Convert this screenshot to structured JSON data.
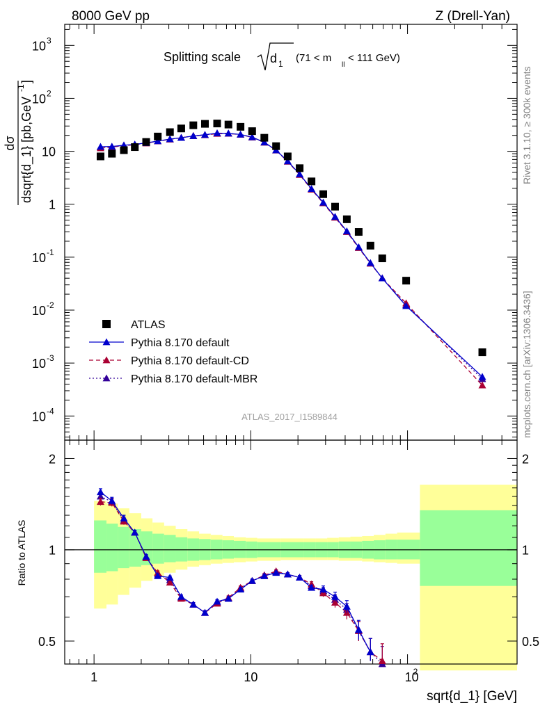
{
  "header": {
    "left": "8000 GeV pp",
    "right": "Z (Drell-Yan)"
  },
  "side_labels": {
    "rivet": "Rivet 3.1.10, ≥ 300k events",
    "mcplots": "mcplots.cern.ch [arXiv:1306.3436]"
  },
  "analysis_id": "ATLAS_2017_I1589844",
  "colors": {
    "atlas": "#000000",
    "default": "#0000cc",
    "cd": "#aa0033",
    "mbr": "#330099",
    "band_inner": "#99ff99",
    "band_outer": "#ffff99"
  },
  "chart_data": [
    {
      "type": "scatter",
      "title": "Splitting scale √d₁ (71 < m_ll < 111 GeV)",
      "title_parts": {
        "prefix": "Splitting scale",
        "symbol": "d",
        "sub": "1",
        "suffix": "(71 < m",
        "suffix_sub": "ll",
        "suffix_end": " < 111 GeV)"
      },
      "ylabel": "dσ / dsqrt{d_1} [pb,GeV⁻¹]",
      "ylabel_parts": {
        "num": "dσ",
        "den": "dsqrt{d_1} [pb,GeV",
        "den_sup": "-1",
        "den_end": "]"
      },
      "xscale": "log",
      "yscale": "log",
      "xlim": [
        0.65,
        500
      ],
      "ylim": [
        3.5e-05,
        2500
      ],
      "yticks": [
        {
          "v": 0.0001,
          "label": "10",
          "sup": "-4"
        },
        {
          "v": 0.001,
          "label": "10",
          "sup": "-3"
        },
        {
          "v": 0.01,
          "label": "10",
          "sup": "-2"
        },
        {
          "v": 0.1,
          "label": "10",
          "sup": "-1"
        },
        {
          "v": 1,
          "label": "1",
          "sup": ""
        },
        {
          "v": 10,
          "label": "10",
          "sup": ""
        },
        {
          "v": 100,
          "label": "10",
          "sup": "2"
        },
        {
          "v": 1000,
          "label": "10",
          "sup": "3"
        }
      ],
      "legend_position": "lower-left",
      "series": [
        {
          "name": "ATLAS",
          "marker": "square",
          "x": [
            1.1,
            1.3,
            1.55,
            1.82,
            2.15,
            2.55,
            3.05,
            3.6,
            4.3,
            5.1,
            6.1,
            7.2,
            8.6,
            10.2,
            12.2,
            14.5,
            17.2,
            20.5,
            24.4,
            29,
            34.5,
            41,
            48.8,
            58,
            69,
            98,
            300
          ],
          "y": [
            8,
            9,
            10.5,
            12,
            15,
            19,
            23,
            27,
            31,
            33,
            33.5,
            32,
            29,
            24,
            18,
            12.5,
            8,
            4.8,
            2.7,
            1.55,
            0.9,
            0.52,
            0.3,
            0.165,
            0.095,
            0.036,
            0.0016
          ]
        },
        {
          "name": "Pythia 8.170 default",
          "marker": "triangle",
          "line": "solid",
          "x": [
            1.1,
            1.3,
            1.55,
            1.82,
            2.15,
            2.55,
            3.05,
            3.6,
            4.3,
            5.1,
            6.1,
            7.2,
            8.6,
            10.2,
            12.2,
            14.5,
            17.2,
            20.5,
            24.4,
            29,
            34.5,
            41,
            48.8,
            58,
            69,
            98,
            300
          ],
          "y": [
            12.2,
            12.3,
            13,
            13.5,
            14.4,
            15.6,
            17,
            18,
            19.5,
            20.5,
            22,
            21.8,
            20.8,
            18.5,
            14.8,
            10.5,
            6.5,
            3.7,
            1.95,
            1.08,
            0.58,
            0.31,
            0.155,
            0.078,
            0.04,
            0.012,
            0.00055
          ]
        },
        {
          "name": "Pythia 8.170 default-CD",
          "marker": "triangle",
          "line": "dashed",
          "x": [
            1.1,
            1.3,
            1.55,
            1.82,
            2.15,
            2.55,
            3.05,
            3.6,
            4.3,
            5.1,
            6.1,
            7.2,
            8.6,
            10.2,
            12.2,
            14.5,
            17.2,
            20.5,
            24.4,
            29,
            34.5,
            41,
            48.8,
            58,
            69,
            98,
            300
          ],
          "y": [
            11.5,
            12,
            12.8,
            13.3,
            14.2,
            15.5,
            16.8,
            18,
            19.5,
            20.3,
            21.5,
            21.6,
            20.7,
            18.3,
            14.7,
            10.4,
            6.4,
            3.6,
            1.9,
            1.05,
            0.56,
            0.3,
            0.15,
            0.076,
            0.04,
            0.0135,
            0.00038
          ]
        },
        {
          "name": "Pythia 8.170 default-MBR",
          "marker": "triangle",
          "line": "dotted",
          "x": [
            1.1,
            1.3,
            1.55,
            1.82,
            2.15,
            2.55,
            3.05,
            3.6,
            4.3,
            5.1,
            6.1,
            7.2,
            8.6,
            10.2,
            12.2,
            14.5,
            17.2,
            20.5,
            24.4,
            29,
            34.5,
            41,
            48.8,
            58,
            69,
            98,
            300
          ],
          "y": [
            12,
            12.2,
            12.9,
            13.4,
            14.3,
            15.5,
            16.9,
            18,
            19.5,
            20.4,
            21.8,
            21.7,
            20.7,
            18.4,
            14.7,
            10.5,
            6.45,
            3.65,
            1.92,
            1.06,
            0.57,
            0.305,
            0.152,
            0.077,
            0.04,
            0.0125,
            0.0005
          ]
        }
      ]
    },
    {
      "type": "line",
      "ylabel": "Ratio to ATLAS",
      "xlabel": "sqrt{d_1} [GeV]",
      "xscale": "log",
      "xlim": [
        0.65,
        500
      ],
      "ylim": [
        0.42,
        2.3
      ],
      "yticks": [
        {
          "v": 0.5,
          "label": "0.5"
        },
        {
          "v": 1,
          "label": "1"
        },
        {
          "v": 2,
          "label": "2"
        }
      ],
      "xticks": [
        {
          "v": 1,
          "label": "1",
          "sup": ""
        },
        {
          "v": 10,
          "label": "10",
          "sup": ""
        },
        {
          "v": 100,
          "label": "10",
          "sup": "2"
        }
      ],
      "bands": {
        "edges": [
          1,
          1.2,
          1.42,
          1.68,
          2,
          2.36,
          2.8,
          3.32,
          3.94,
          4.68,
          5.55,
          6.6,
          7.8,
          9.3,
          11,
          13,
          15.5,
          18.4,
          21.8,
          25.9,
          30.7,
          36.4,
          43.2,
          51.3,
          60.9,
          72.3,
          85.8,
          120,
          500
        ],
        "inner_lo": [
          0.84,
          0.85,
          0.87,
          0.88,
          0.89,
          0.9,
          0.91,
          0.915,
          0.92,
          0.925,
          0.93,
          0.935,
          0.94,
          0.94,
          0.945,
          0.945,
          0.945,
          0.945,
          0.945,
          0.945,
          0.945,
          0.94,
          0.94,
          0.935,
          0.93,
          0.93,
          0.93,
          0.76
        ],
        "inner_hi": [
          1.25,
          1.22,
          1.19,
          1.17,
          1.15,
          1.13,
          1.12,
          1.1,
          1.09,
          1.085,
          1.08,
          1.075,
          1.07,
          1.065,
          1.06,
          1.06,
          1.06,
          1.06,
          1.06,
          1.06,
          1.06,
          1.065,
          1.065,
          1.07,
          1.075,
          1.08,
          1.08,
          1.35
        ],
        "outer_lo": [
          0.64,
          0.66,
          0.71,
          0.75,
          0.79,
          0.82,
          0.84,
          0.86,
          0.88,
          0.89,
          0.9,
          0.905,
          0.91,
          0.915,
          0.92,
          0.92,
          0.925,
          0.925,
          0.925,
          0.925,
          0.925,
          0.92,
          0.92,
          0.915,
          0.91,
          0.905,
          0.9,
          0.4
        ],
        "outer_hi": [
          1.45,
          1.42,
          1.37,
          1.32,
          1.27,
          1.23,
          1.2,
          1.17,
          1.15,
          1.13,
          1.12,
          1.11,
          1.1,
          1.095,
          1.09,
          1.09,
          1.09,
          1.09,
          1.09,
          1.09,
          1.095,
          1.1,
          1.105,
          1.11,
          1.12,
          1.13,
          1.14,
          1.64
        ]
      },
      "series": [
        {
          "name": "Pythia 8.170 default",
          "x": [
            1.1,
            1.3,
            1.55,
            1.82,
            2.15,
            2.55,
            3.05,
            3.6,
            4.3,
            5.1,
            6.1,
            7.2,
            8.6,
            10.2,
            12.2,
            14.5,
            17.2,
            20.5,
            24.4,
            29,
            34.5,
            41,
            48.8,
            58,
            69
          ],
          "y": [
            1.55,
            1.45,
            1.27,
            1.14,
            0.95,
            0.82,
            0.81,
            0.7,
            0.66,
            0.62,
            0.675,
            0.69,
            0.74,
            0.79,
            0.82,
            0.84,
            0.83,
            0.81,
            0.75,
            0.74,
            0.7,
            0.65,
            0.545,
            0.46,
            0.41
          ],
          "err": [
            0.04,
            0.04,
            0.03,
            0.02,
            0.015,
            0.012,
            0.01,
            0.01,
            0.01,
            0.01,
            0.01,
            0.01,
            0.01,
            0.01,
            0.01,
            0.01,
            0.01,
            0.012,
            0.015,
            0.02,
            0.025,
            0.03,
            0.04,
            0.05,
            0.06
          ]
        },
        {
          "name": "Pythia 8.170 default-CD",
          "x": [
            1.1,
            1.3,
            1.55,
            1.82,
            2.15,
            2.55,
            3.05,
            3.6,
            4.3,
            5.1,
            6.1,
            7.2,
            8.6,
            10.2,
            12.2,
            14.5,
            17.2,
            20.5,
            24.4,
            29,
            34.5,
            41,
            48.8,
            58,
            69
          ],
          "y": [
            1.44,
            1.43,
            1.24,
            1.14,
            0.94,
            0.84,
            0.78,
            0.69,
            0.66,
            0.62,
            0.665,
            0.695,
            0.75,
            0.79,
            0.825,
            0.85,
            0.83,
            0.81,
            0.77,
            0.72,
            0.67,
            0.62,
            0.54,
            0.46,
            0.43
          ],
          "err": [
            0.04,
            0.04,
            0.03,
            0.02,
            0.015,
            0.012,
            0.01,
            0.01,
            0.01,
            0.01,
            0.01,
            0.01,
            0.01,
            0.01,
            0.01,
            0.01,
            0.01,
            0.012,
            0.015,
            0.02,
            0.025,
            0.03,
            0.04,
            0.05,
            0.06
          ]
        },
        {
          "name": "Pythia 8.170 default-MBR",
          "x": [
            1.1,
            1.3,
            1.55,
            1.82,
            2.15,
            2.55,
            3.05,
            3.6,
            4.3,
            5.1,
            6.1,
            7.2,
            8.6,
            10.2,
            12.2,
            14.5,
            17.2,
            20.5,
            24.4,
            29,
            34.5,
            41,
            48.8,
            58,
            69
          ],
          "y": [
            1.5,
            1.44,
            1.25,
            1.14,
            0.945,
            0.83,
            0.795,
            0.695,
            0.66,
            0.62,
            0.67,
            0.69,
            0.745,
            0.79,
            0.82,
            0.845,
            0.83,
            0.81,
            0.76,
            0.73,
            0.685,
            0.635,
            0.54,
            0.46,
            0.42
          ],
          "err": [
            0.04,
            0.04,
            0.03,
            0.02,
            0.015,
            0.012,
            0.01,
            0.01,
            0.01,
            0.01,
            0.01,
            0.01,
            0.01,
            0.01,
            0.01,
            0.01,
            0.01,
            0.012,
            0.015,
            0.02,
            0.025,
            0.03,
            0.04,
            0.05,
            0.06
          ]
        }
      ]
    }
  ]
}
